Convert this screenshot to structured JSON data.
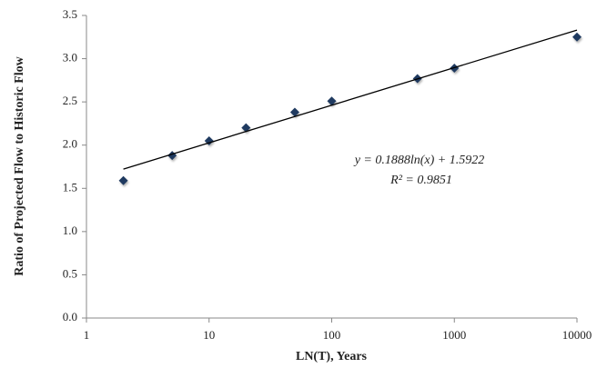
{
  "chart_data": {
    "type": "scatter",
    "x_label": "LN(T), Years",
    "y_label": "Ratio of Projected Flow to Historic Flow",
    "annotations": [
      "y = 0.1888ln(x) + 1.5922",
      "R² = 0.9851"
    ],
    "xlog": true,
    "xlim": [
      1,
      10000
    ],
    "xticks": [
      1,
      10,
      100,
      1000,
      10000
    ],
    "ylim": [
      0,
      3.5
    ],
    "yticks": [
      {
        "value": 0,
        "label": "0.0"
      },
      0.5,
      {
        "value": 1,
        "label": "1.0"
      },
      1.5,
      {
        "value": 2,
        "label": "2.0"
      },
      2.5,
      {
        "value": 3,
        "label": "3.0"
      },
      3.5
    ],
    "grid": false,
    "series": [
      {
        "type": "scatter",
        "color": "#1f3a60",
        "x": [
          2,
          5,
          10,
          20,
          50,
          100,
          500,
          1000,
          10000
        ],
        "values": [
          1.59,
          1.88,
          2.05,
          2.2,
          2.38,
          2.51,
          2.77,
          2.89,
          3.25
        ]
      },
      {
        "type": "line",
        "color": "#000000",
        "x": [
          2,
          10000
        ],
        "values": [
          1.723,
          3.331
        ]
      }
    ]
  }
}
